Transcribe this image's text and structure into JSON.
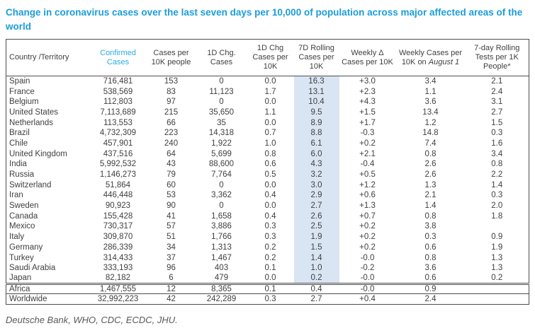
{
  "title": "Change in coronavirus cases over the last seven days per 10,000 of population across major affected areas of the world",
  "source": "Deutsche Bank, WHO, CDC, ECDC, JHU.",
  "colors": {
    "title_blue": "#1b9dd9",
    "confirmed_header_blue": "#29abe2",
    "highlight_column": "#d9e5f2",
    "border": "#4d4d4f"
  },
  "table": {
    "columns": [
      "Country /Territory",
      "Confirmed Cases",
      "Cases per 10K people",
      "1D Chg. Cases",
      "1D Chg Cases per 10K",
      "7D Rolling Cases per 10K",
      "Weekly Δ Cases per 10K",
      "Weekly Cases per 10K on",
      "7-day Rolling Tests per 1K People*"
    ],
    "august_date": "August 1",
    "rows": [
      [
        "Spain",
        "716,481",
        "153",
        "0",
        "0.0",
        "16.3",
        "+3.0",
        "3.4",
        "2.1"
      ],
      [
        "France",
        "538,569",
        "83",
        "11,123",
        "1.7",
        "13.1",
        "+2.3",
        "1.1",
        "2.4"
      ],
      [
        "Belgium",
        "112,803",
        "97",
        "0",
        "0.0",
        "10.4",
        "+4.3",
        "3.6",
        "3.1"
      ],
      [
        "United States",
        "7,113,689",
        "215",
        "35,650",
        "1.1",
        "9.5",
        "+1.5",
        "13.4",
        "2.7"
      ],
      [
        "Netherlands",
        "113,553",
        "66",
        "35",
        "0.0",
        "8.9",
        "+1.7",
        "1.2",
        "1.5"
      ],
      [
        "Brazil",
        "4,732,309",
        "223",
        "14,318",
        "0.7",
        "8.8",
        "-0.3",
        "14.8",
        "0.3"
      ],
      [
        "Chile",
        "457,901",
        "240",
        "1,922",
        "1.0",
        "6.1",
        "+0.2",
        "7.4",
        "1.6"
      ],
      [
        "United Kingdom",
        "437,516",
        "64",
        "5,699",
        "0.8",
        "6.0",
        "+2.1",
        "0.8",
        "3.4"
      ],
      [
        "India",
        "5,992,532",
        "43",
        "88,600",
        "0.6",
        "4.3",
        "-0.4",
        "2.6",
        "0.8"
      ],
      [
        "Russia",
        "1,146,273",
        "79",
        "7,764",
        "0.5",
        "3.2",
        "+0.5",
        "2.6",
        "2.2"
      ],
      [
        "Switzerland",
        "51,864",
        "60",
        "0",
        "0.0",
        "3.0",
        "+1.2",
        "1.3",
        "1.4"
      ],
      [
        "Iran",
        "446,448",
        "53",
        "3,362",
        "0.4",
        "2.9",
        "+0.6",
        "2.1",
        "0.3"
      ],
      [
        "Sweden",
        "90,923",
        "90",
        "0",
        "0.0",
        "2.7",
        "+1.3",
        "1.4",
        "2.0"
      ],
      [
        "Canada",
        "155,428",
        "41",
        "1,658",
        "0.4",
        "2.6",
        "+0.7",
        "0.8",
        "1.8"
      ],
      [
        "Mexico",
        "730,317",
        "57",
        "3,886",
        "0.3",
        "2.5",
        "+0.2",
        "3.8",
        ""
      ],
      [
        "Italy",
        "309,870",
        "51",
        "1,766",
        "0.3",
        "1.9",
        "+0.2",
        "0.3",
        "0.9"
      ],
      [
        "Germany",
        "286,339",
        "34",
        "1,313",
        "0.2",
        "1.5",
        "+0.2",
        "0.6",
        "1.9"
      ],
      [
        "Turkey",
        "314,433",
        "37",
        "1,467",
        "0.2",
        "1.4",
        "-0.0",
        "0.8",
        "1.3"
      ],
      [
        "Saudi Arabia",
        "333,193",
        "96",
        "403",
        "0.1",
        "1.0",
        "-0.2",
        "3.6",
        "1.3"
      ],
      [
        "Japan",
        "82,182",
        "6",
        "479",
        "0.0",
        "0.2",
        "-0.0",
        "0.6",
        "0.2"
      ]
    ],
    "summary_rows": [
      [
        "Africa",
        "1,467,555",
        "12",
        "8,365",
        "0.1",
        "0.4",
        "-0.0",
        "0.9",
        ""
      ],
      [
        "Worldwide",
        "32,992,223",
        "42",
        "242,289",
        "0.3",
        "2.7",
        "+0.4",
        "2.4",
        ""
      ]
    ]
  }
}
